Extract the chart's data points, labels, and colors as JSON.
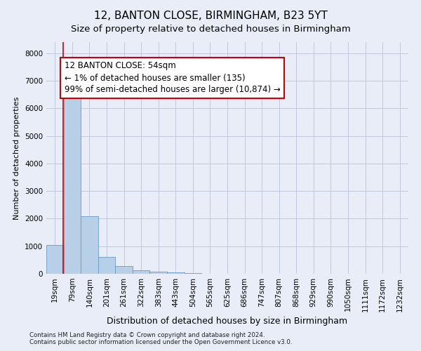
{
  "title": "12, BANTON CLOSE, BIRMINGHAM, B23 5YT",
  "subtitle": "Size of property relative to detached houses in Birmingham",
  "xlabel": "Distribution of detached houses by size in Birmingham",
  "ylabel": "Number of detached properties",
  "categories": [
    "19sqm",
    "79sqm",
    "140sqm",
    "201sqm",
    "261sqm",
    "322sqm",
    "383sqm",
    "443sqm",
    "504sqm",
    "565sqm",
    "625sqm",
    "686sqm",
    "747sqm",
    "807sqm",
    "868sqm",
    "929sqm",
    "990sqm",
    "1050sqm",
    "1111sqm",
    "1172sqm",
    "1232sqm"
  ],
  "values": [
    1050,
    6550,
    2100,
    600,
    280,
    130,
    80,
    45,
    15,
    5,
    2,
    0,
    0,
    0,
    0,
    0,
    0,
    0,
    0,
    0,
    0
  ],
  "bar_color": "#b8cfe8",
  "bar_edge_color": "#6699cc",
  "annotation_line1": "12 BANTON CLOSE: 54sqm",
  "annotation_line2": "← 1% of detached houses are smaller (135)",
  "annotation_line3": "99% of semi-detached houses are larger (10,874) →",
  "annotation_box_facecolor": "#ffffff",
  "annotation_box_edgecolor": "#cc0000",
  "property_line_color": "#cc0000",
  "property_line_x": 0.47,
  "footnote1": "Contains HM Land Registry data © Crown copyright and database right 2024.",
  "footnote2": "Contains public sector information licensed under the Open Government Licence v3.0.",
  "background_color": "#e8edf8",
  "plot_bg_color": "#e8edf8",
  "ylim": [
    0,
    8400
  ],
  "yticks": [
    0,
    1000,
    2000,
    3000,
    4000,
    5000,
    6000,
    7000,
    8000
  ],
  "grid_color": "#c0c8dc",
  "title_fontsize": 11,
  "subtitle_fontsize": 9.5,
  "xlabel_fontsize": 9,
  "ylabel_fontsize": 8,
  "tick_fontsize": 7.5,
  "annot_fontsize": 8.5
}
